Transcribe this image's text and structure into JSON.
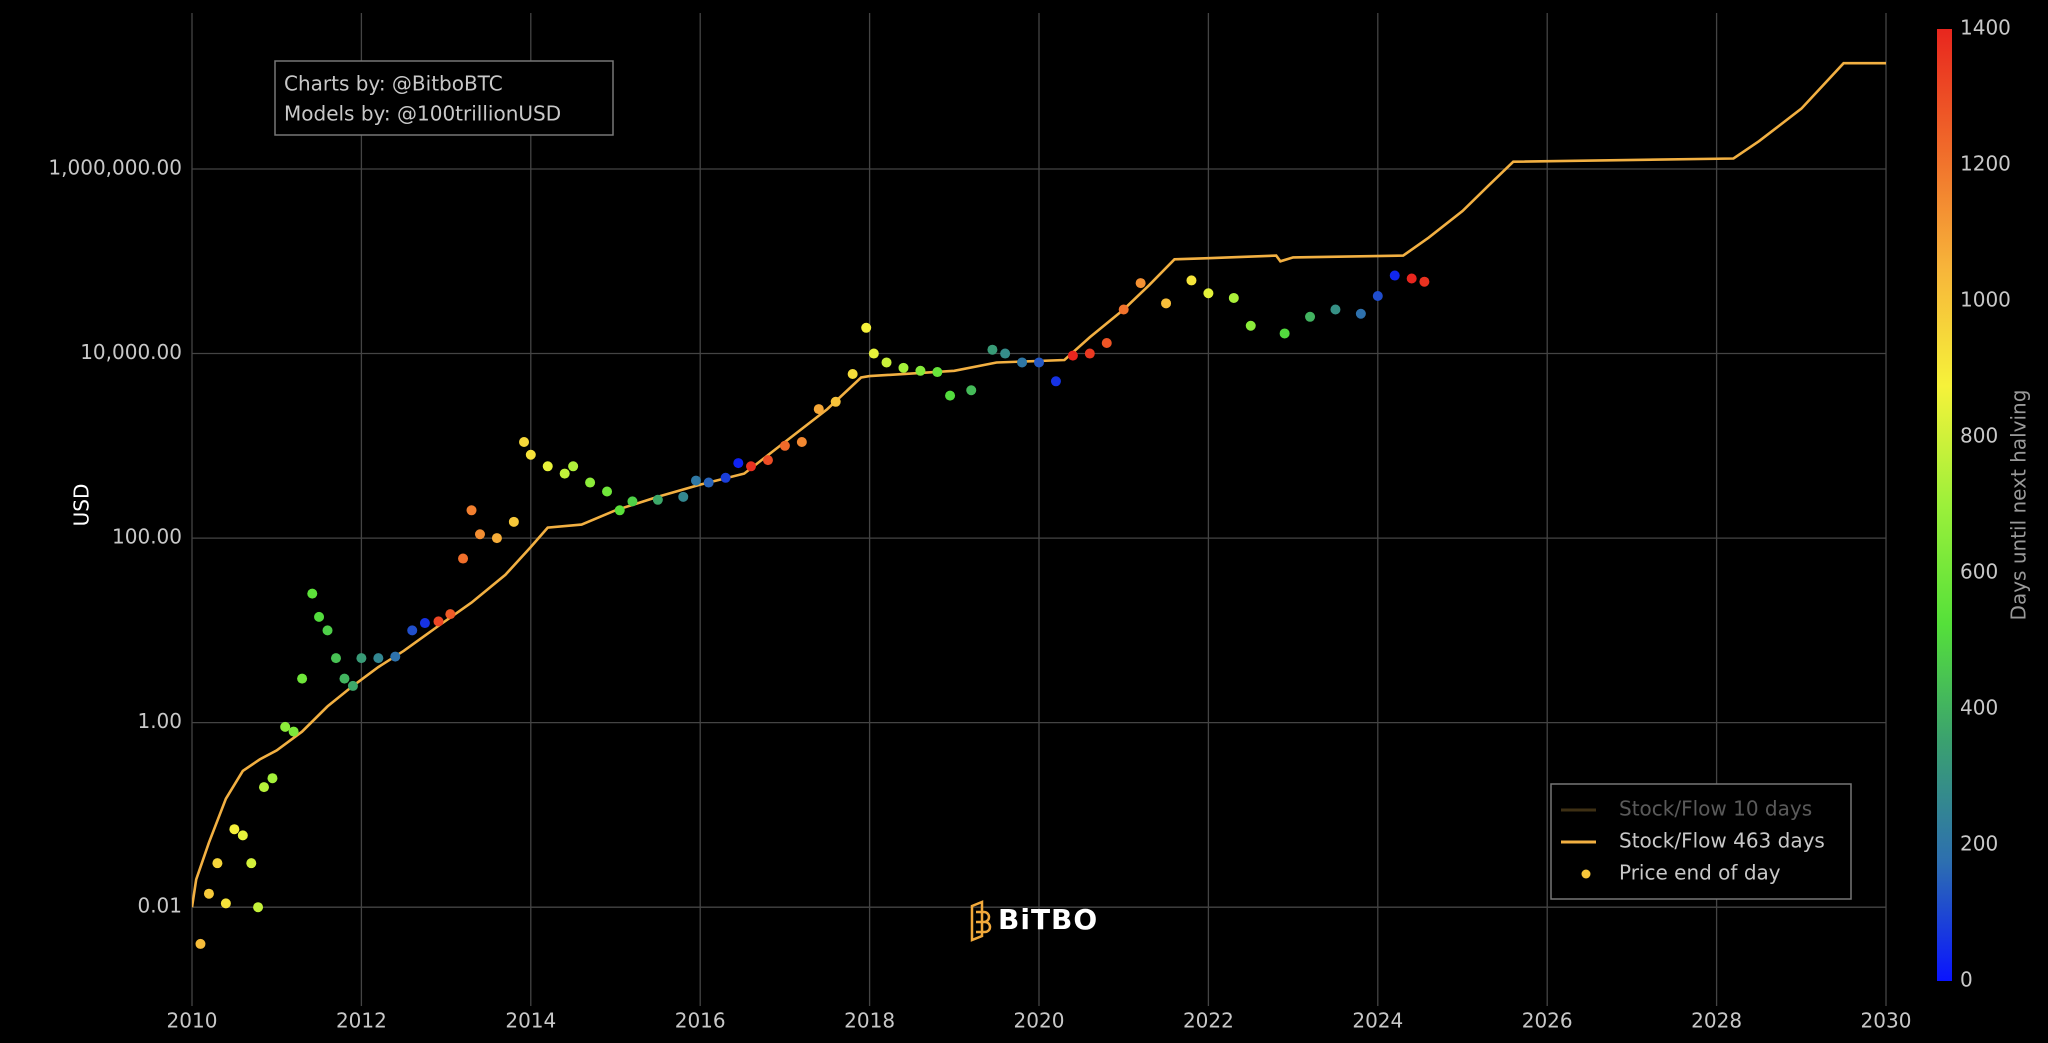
{
  "chart_data": {
    "type": "scatter-line",
    "annotation": [
      "Charts by: @BitboBTC",
      "Models by: @100trillionUSD"
    ],
    "logo": "BiTBO",
    "y_label": "USD",
    "log_y": true,
    "grid": true,
    "legend": "bottom-right",
    "xlim": [
      2010,
      2030
    ],
    "xticks": [
      2010,
      2012,
      2014,
      2016,
      2018,
      2020,
      2022,
      2024,
      2026,
      2028,
      2030
    ],
    "ylim": [
      0.00085,
      49000000
    ],
    "yticks": [
      0.01,
      {
        "value": 1,
        "label": "1.00"
      },
      {
        "value": 100,
        "label": "100.00"
      },
      {
        "value": 10000,
        "label": "10,000.00"
      },
      {
        "value": 1000000,
        "label": "1,000,000.00"
      }
    ],
    "colorbar": {
      "title": "Days until next halving",
      "lim": [
        0,
        1400
      ],
      "ticks": [
        0,
        200,
        400,
        600,
        800,
        1000,
        1200,
        1400
      ],
      "colors": [
        "#0a14ff",
        "#2d6fb0",
        "#3aa070",
        "#55e03a",
        "#9cf03a",
        "#f6f23a",
        "#f7b43a",
        "#f06a2a",
        "#e8261e"
      ]
    },
    "series": [
      {
        "name": "Stock/Flow 10 days",
        "kind": "line",
        "color": "#8a6a2e",
        "hidden": true
      },
      {
        "name": "Stock/Flow 463 days",
        "kind": "line",
        "color": "#f2b042",
        "x": [
          2010,
          2010.05,
          2010.2,
          2010.4,
          2010.6,
          2010.8,
          2011.0,
          2011.3,
          2011.6,
          2011.9,
          2012.2,
          2012.5,
          2012.9,
          2013.3,
          2013.7,
          2014.0,
          2014.2,
          2014.6,
          2015.0,
          2015.5,
          2016.0,
          2016.52,
          2017.0,
          2017.5,
          2017.9,
          2018.0,
          2019.0,
          2019.5,
          2020.3,
          2020.6,
          2021.0,
          2021.3,
          2021.6,
          2022.0,
          2022.8,
          2022.85,
          2023.0,
          2024.3,
          2024.6,
          2025.0,
          2025.3,
          2025.6,
          2028.2,
          2028.5,
          2029.0,
          2029.5,
          2030
        ],
        "values": [
          0.01,
          0.02,
          0.05,
          0.15,
          0.3,
          0.4,
          0.5,
          0.8,
          1.5,
          2.5,
          4,
          6,
          11,
          20,
          40,
          80,
          130,
          140,
          200,
          280,
          380,
          500,
          1100,
          2500,
          5500,
          5700,
          6500,
          8000,
          8500,
          15000,
          30000,
          55000,
          105000,
          108000,
          115000,
          100000,
          110000,
          115000,
          180000,
          350000,
          650000,
          1200000,
          1300000,
          2000000,
          4500000,
          14000000,
          14000000
        ]
      },
      {
        "name": "Price end of day",
        "kind": "points",
        "color": "#f6c63a",
        "x": [
          2010.1,
          2010.2,
          2010.3,
          2010.4,
          2010.5,
          2010.6,
          2010.7,
          2010.78,
          2010.85,
          2010.95,
          2011.1,
          2011.2,
          2011.3,
          2011.42,
          2011.5,
          2011.6,
          2011.7,
          2011.8,
          2011.9,
          2012.0,
          2012.2,
          2012.4,
          2012.6,
          2012.75,
          2012.91,
          2013.05,
          2013.2,
          2013.3,
          2013.4,
          2013.6,
          2013.8,
          2013.92,
          2014.0,
          2014.2,
          2014.4,
          2014.5,
          2014.7,
          2014.9,
          2015.05,
          2015.2,
          2015.5,
          2015.8,
          2015.95,
          2016.1,
          2016.3,
          2016.45,
          2016.6,
          2016.8,
          2017.0,
          2017.2,
          2017.4,
          2017.6,
          2017.8,
          2017.96,
          2018.05,
          2018.2,
          2018.4,
          2018.6,
          2018.8,
          2018.95,
          2019.2,
          2019.45,
          2019.6,
          2019.8,
          2020.0,
          2020.2,
          2020.4,
          2020.6,
          2020.8,
          2021.0,
          2021.2,
          2021.5,
          2021.8,
          2022.0,
          2022.3,
          2022.5,
          2022.9,
          2023.2,
          2023.5,
          2023.8,
          2024.0,
          2024.2,
          2024.4,
          2024.55
        ],
        "values": [
          0.004,
          0.014,
          0.03,
          0.011,
          0.07,
          0.06,
          0.03,
          0.01,
          0.2,
          0.25,
          0.9,
          0.8,
          3,
          25,
          14,
          10,
          5,
          3,
          2.5,
          5,
          5,
          5.2,
          10,
          12,
          12.5,
          15,
          60,
          200,
          110,
          100,
          150,
          1100,
          800,
          600,
          500,
          600,
          400,
          320,
          200,
          250,
          260,
          280,
          420,
          400,
          450,
          650,
          600,
          700,
          1000,
          1100,
          2500,
          3000,
          6000,
          19000,
          10000,
          8000,
          7000,
          6500,
          6300,
          3500,
          4000,
          11000,
          10000,
          8000,
          8000,
          5000,
          9500,
          10000,
          13000,
          30000,
          58000,
          35000,
          62000,
          45000,
          40000,
          20000,
          16500,
          25000,
          30000,
          27000,
          42000,
          70000,
          65000,
          60000
        ],
        "color_values": [
          1026,
          989,
          953,
          916,
          880,
          843,
          807,
          777,
          752,
          715,
          661,
          624,
          588,
          544,
          515,
          478,
          442,
          405,
          369,
          332,
          259,
          186,
          113,
          58,
          1318,
          1266,
          1212,
          1175,
          1139,
          1066,
          993,
          949,
          920,
          847,
          774,
          737,
          664,
          591,
          537,
          482,
          372,
          263,
          208,
          153,
          80,
          26,
          1372,
          1299,
          1226,
          1153,
          1081,
          1008,
          935,
          876,
          843,
          788,
          716,
          643,
          570,
          515,
          423,
          332,
          277,
          204,
          131,
          58,
          1400,
          1350,
          1278,
          1205,
          1132,
          1022,
          913,
          840,
          730,
          657,
          511,
          402,
          292,
          183,
          110,
          37,
          1400,
          1369
        ]
      }
    ]
  }
}
